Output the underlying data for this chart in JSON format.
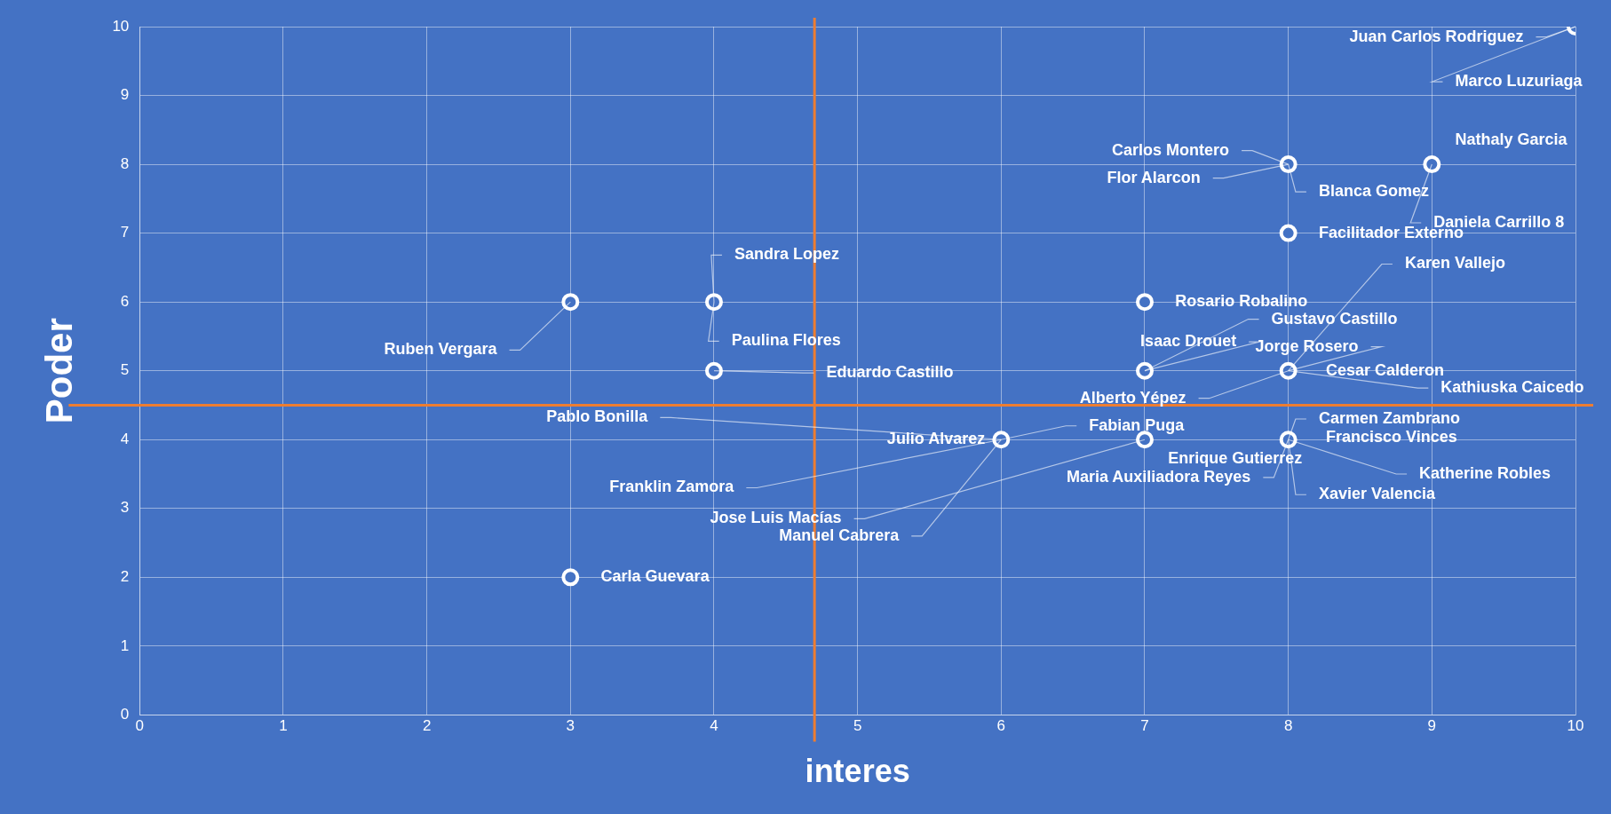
{
  "chart_data": {
    "type": "scatter",
    "xlabel": "interes",
    "ylabel": "Poder",
    "x": [
      10,
      9,
      8,
      8,
      7,
      3,
      4,
      4,
      7,
      8,
      6,
      7,
      8,
      3
    ],
    "series": [
      {
        "color": "#ffffff",
        "values": [
          10,
          8,
          8,
          7,
          6,
          6,
          6,
          5,
          5,
          5,
          4,
          4,
          4,
          2
        ]
      }
    ],
    "xlim": [
      0,
      10
    ],
    "ylim": [
      0,
      10
    ],
    "xticks": [
      0,
      1,
      2,
      3,
      4,
      5,
      6,
      7,
      8,
      9,
      10
    ],
    "yticks": [
      0,
      1,
      2,
      3,
      4,
      5,
      6,
      7,
      8,
      9,
      10
    ],
    "grid": true,
    "legend": false,
    "marker": "circle",
    "ref_lines": [
      {
        "axis": "x",
        "value": 4.7,
        "color": "#ed7d31"
      },
      {
        "axis": "y",
        "value": 4.5,
        "color": "#ed7d31"
      }
    ],
    "annotations": [
      {
        "text": "Juan Carlos Rodriguez",
        "x": 10,
        "y": 10
      },
      {
        "text": "Marco Luzuriaga",
        "x": 10,
        "y": 10
      },
      {
        "text": "Nathaly Garcia",
        "x": 9,
        "y": 8
      },
      {
        "text": "Daniela Carrillo 8",
        "x": 9,
        "y": 8
      },
      {
        "text": "Carlos Montero",
        "x": 8,
        "y": 8
      },
      {
        "text": "Flor Alarcon",
        "x": 8,
        "y": 8
      },
      {
        "text": "Blanca Gomez",
        "x": 8,
        "y": 8
      },
      {
        "text": "Facilitador Externo",
        "x": 8,
        "y": 7
      },
      {
        "text": "Rosario Robalino",
        "x": 7,
        "y": 6
      },
      {
        "text": "Ruben Vergara",
        "x": 3,
        "y": 6
      },
      {
        "text": "Sandra Lopez",
        "x": 4,
        "y": 6
      },
      {
        "text": "Paulina Flores",
        "x": 4,
        "y": 6
      },
      {
        "text": "Eduardo Castillo",
        "x": 4,
        "y": 5
      },
      {
        "text": "Gustavo Castillo",
        "x": 7,
        "y": 5
      },
      {
        "text": "Isaac Drouet",
        "x": 7,
        "y": 5
      },
      {
        "text": "Alberto Yépez",
        "x": 8,
        "y": 5
      },
      {
        "text": "Karen Vallejo",
        "x": 8,
        "y": 5
      },
      {
        "text": "Jorge Rosero",
        "x": 8,
        "y": 5
      },
      {
        "text": "Cesar Calderon",
        "x": 8,
        "y": 5
      },
      {
        "text": "Kathiuska Caicedo",
        "x": 8,
        "y": 5
      },
      {
        "text": "Pablo Bonilla",
        "x": 6,
        "y": 4
      },
      {
        "text": "Julio Alvarez",
        "x": 6,
        "y": 4
      },
      {
        "text": "Fabian Puga",
        "x": 6,
        "y": 4
      },
      {
        "text": "Franklin Zamora",
        "x": 6,
        "y": 4
      },
      {
        "text": "Manuel Cabrera",
        "x": 6,
        "y": 4
      },
      {
        "text": "Jose Luis Macías",
        "x": 7,
        "y": 4
      },
      {
        "text": "Enrique Gutierrez",
        "x": 7,
        "y": 4
      },
      {
        "text": "Carmen Zambrano",
        "x": 8,
        "y": 4
      },
      {
        "text": "Francisco Vinces",
        "x": 8,
        "y": 4
      },
      {
        "text": "Maria Auxiliadora Reyes",
        "x": 8,
        "y": 4
      },
      {
        "text": "Katherine Robles",
        "x": 8,
        "y": 4
      },
      {
        "text": "Xavier Valencia",
        "x": 8,
        "y": 4
      },
      {
        "text": "Carla Guevara",
        "x": 3,
        "y": 2
      }
    ]
  }
}
